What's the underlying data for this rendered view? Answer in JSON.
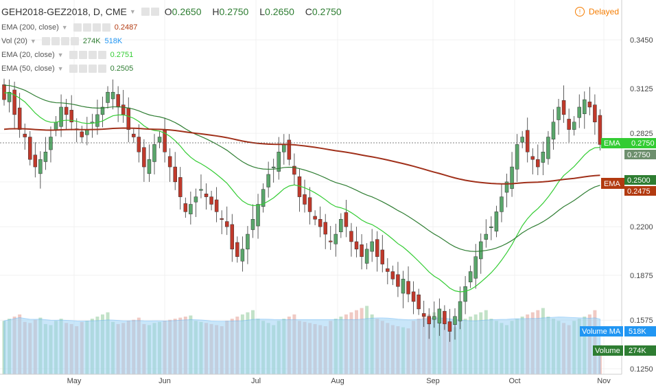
{
  "header": {
    "symbol": "GEH2018-GEZ2018, D, CME",
    "open_label": "O",
    "open": "0.2650",
    "high_label": "H",
    "high": "0.2750",
    "low_label": "L",
    "low": "0.2650",
    "close_label": "C",
    "close": "0.2750"
  },
  "status": {
    "delayed": "Delayed"
  },
  "legend": [
    {
      "label": "EMA (200, close)",
      "value": "0.2487",
      "color": "#b23a10"
    },
    {
      "label": "Vol (20)",
      "value": "274K",
      "value2": "518K",
      "color": "#2e7d32",
      "color2": "#2196f3"
    },
    {
      "label": "EMA (20, close)",
      "value": "0.2751",
      "color": "#33cc33"
    },
    {
      "label": "EMA (50, close)",
      "value": "0.2505",
      "color": "#2e7d32"
    }
  ],
  "price_badges": {
    "ema20_label": "EMA",
    "ema20_value": "0.2750",
    "close_value": "0.2750",
    "ema200_label": "EMA",
    "ema50_value": "0.2500",
    "ema200_value": "0.2475"
  },
  "volume_badges": {
    "ma_label": "Volume MA",
    "ma_value": "518K",
    "vol_label": "Volume",
    "vol_value": "274K"
  },
  "chart_data": {
    "type": "candlestick",
    "y_ticks": [
      "0.3450",
      "0.3125",
      "0.2825",
      "0.2500",
      "0.2200",
      "0.1875",
      "0.1575",
      "0.1250"
    ],
    "x_ticks": [
      "May",
      "Jun",
      "Jul",
      "Aug",
      "Sep",
      "Oct",
      "Nov"
    ],
    "ylim": [
      0.125,
      0.345
    ],
    "price": [
      0.305,
      0.31,
      0.295,
      0.285,
      0.28,
      0.265,
      0.26,
      0.265,
      0.27,
      0.28,
      0.29,
      0.3,
      0.295,
      0.29,
      0.285,
      0.28,
      0.285,
      0.29,
      0.295,
      0.3,
      0.31,
      0.31,
      0.3,
      0.295,
      0.285,
      0.28,
      0.27,
      0.26,
      0.265,
      0.275,
      0.28,
      0.27,
      0.26,
      0.25,
      0.24,
      0.23,
      0.235,
      0.24,
      0.245,
      0.24,
      0.235,
      0.23,
      0.225,
      0.22,
      0.205,
      0.2,
      0.205,
      0.215,
      0.225,
      0.235,
      0.245,
      0.255,
      0.26,
      0.27,
      0.275,
      0.265,
      0.255,
      0.24,
      0.235,
      0.23,
      0.225,
      0.22,
      0.215,
      0.21,
      0.215,
      0.225,
      0.22,
      0.21,
      0.205,
      0.2,
      0.205,
      0.21,
      0.2,
      0.195,
      0.19,
      0.185,
      0.18,
      0.185,
      0.175,
      0.17,
      0.165,
      0.16,
      0.155,
      0.16,
      0.165,
      0.155,
      0.15,
      0.16,
      0.17,
      0.18,
      0.19,
      0.2,
      0.21,
      0.215,
      0.22,
      0.23,
      0.24,
      0.25,
      0.26,
      0.275,
      0.28,
      0.27,
      0.265,
      0.26,
      0.27,
      0.28,
      0.29,
      0.3,
      0.295,
      0.285,
      0.29,
      0.3,
      0.305,
      0.3,
      0.29,
      0.275
    ],
    "volume_k": [
      500,
      520,
      540,
      560,
      490,
      480,
      510,
      530,
      470,
      460,
      500,
      520,
      480,
      470,
      450,
      490,
      500,
      520,
      540,
      560,
      580,
      490,
      470,
      480,
      500,
      510,
      530,
      470,
      460,
      480,
      490,
      500,
      510,
      520,
      530,
      540,
      550,
      500,
      490,
      480,
      470,
      460,
      450,
      500,
      520,
      540,
      560,
      580,
      600,
      520,
      500,
      480,
      460,
      500,
      520,
      540,
      560,
      500,
      490,
      480,
      470,
      460,
      450,
      500,
      520,
      540,
      560,
      580,
      600,
      620,
      640,
      560,
      520,
      500,
      480,
      460,
      450,
      440,
      430,
      500,
      520,
      540,
      560,
      580,
      520,
      480,
      460,
      440,
      500,
      520,
      540,
      560,
      580,
      600,
      520,
      500,
      480,
      460,
      500,
      520,
      540,
      560,
      580,
      600,
      620,
      540,
      520,
      500,
      480,
      460,
      500,
      520,
      540,
      560,
      600,
      274
    ]
  }
}
